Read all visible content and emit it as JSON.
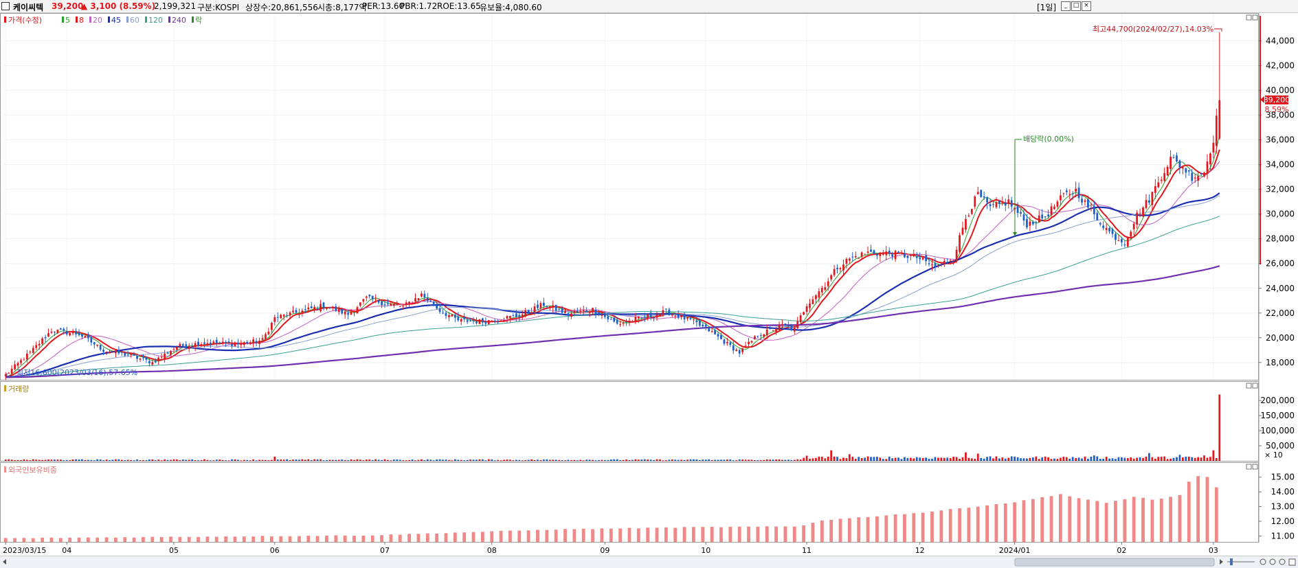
{
  "header": {
    "name": "케이씨텍",
    "price": "39,200",
    "change": "▲ 3,100 (8.59%)",
    "volume": "2,199,321",
    "market": "구분:KOSPI",
    "shares": "상장수:20,861,556",
    "mcap": "시총:8,177억",
    "per": "PER:13.60",
    "pbr": "PBR:1.72",
    "roe": "ROE:13.65",
    "float": "유보율:4,080.60",
    "period_button": "[1일]",
    "colors": {
      "up": "#e0181e",
      "down": "#1c5fc9",
      "name": "#000000"
    }
  },
  "legend": {
    "price_label": "가격(수정)",
    "ma": [
      {
        "label": "5",
        "color": "#2ca02c"
      },
      {
        "label": "8",
        "color": "#e0181e"
      },
      {
        "label": "20",
        "color": "#c060c0"
      },
      {
        "label": "45",
        "color": "#1a2fb0"
      },
      {
        "label": "60",
        "color": "#8aa0d0"
      },
      {
        "label": "120",
        "color": "#3aa090"
      },
      {
        "label": "240",
        "color": "#7030b0"
      },
      {
        "label": "락",
        "color": "#2a8a2a"
      }
    ]
  },
  "annotations": {
    "high": "최고44,700(2024/02/27),14.03%",
    "low": "최저16,600(2023/03/16),57.65%",
    "dividend": "배당락(0.00%)",
    "current_price": "39,200",
    "current_pct": "8.59%"
  },
  "panels": {
    "volume_title": "거래량",
    "foreign_title": "외국인보유비중",
    "volume_unit": "× 10"
  },
  "chart_data": {
    "type": "candlestick",
    "title": "케이씨텍",
    "x_ticks": [
      "2023/03/15",
      "04",
      "05",
      "06",
      "07",
      "08",
      "09",
      "10",
      "11",
      "12",
      "2024/01",
      "02",
      "03"
    ],
    "price_y_ticks": [
      18000,
      20000,
      22000,
      24000,
      26000,
      28000,
      30000,
      32000,
      34000,
      36000,
      38000,
      40000,
      42000,
      44000
    ],
    "price_ylim": [
      16600,
      46200
    ],
    "price_tick_labels": [
      "18,000",
      "20,000",
      "22,000",
      "24,000",
      "26,000",
      "28,000",
      "30,000",
      "32,000",
      "34,000",
      "36,000",
      "38,000",
      "40,000",
      "42,000",
      "44,000"
    ],
    "volume_y_ticks": [
      50000,
      100000,
      150000,
      200000
    ],
    "volume_tick_labels": [
      "50,000",
      "100,000",
      "150,000",
      "200,000"
    ],
    "volume_ylim": [
      0,
      230000
    ],
    "foreign_y_ticks": [
      11,
      12,
      13,
      14,
      15
    ],
    "foreign_tick_labels": [
      "11.00",
      "12.00",
      "13.00",
      "14.00",
      "15.00"
    ],
    "foreign_ylim": [
      10.6,
      15.5
    ],
    "last_close": 39200,
    "high": {
      "value": 44700,
      "date": "2024/02/27"
    },
    "low": {
      "value": 16600,
      "date": "2023/03/16"
    },
    "close_anchors": [
      [
        0,
        17000
      ],
      [
        8,
        18800
      ],
      [
        15,
        20600
      ],
      [
        24,
        20300
      ],
      [
        32,
        19000
      ],
      [
        40,
        18600
      ],
      [
        48,
        18000
      ],
      [
        56,
        19300
      ],
      [
        65,
        19600
      ],
      [
        76,
        19500
      ],
      [
        84,
        19800
      ],
      [
        88,
        21600
      ],
      [
        96,
        22100
      ],
      [
        104,
        22600
      ],
      [
        112,
        21900
      ],
      [
        118,
        23200
      ],
      [
        124,
        22800
      ],
      [
        130,
        22500
      ],
      [
        136,
        23500
      ],
      [
        142,
        22200
      ],
      [
        148,
        21400
      ],
      [
        156,
        21300
      ],
      [
        168,
        21800
      ],
      [
        176,
        22700
      ],
      [
        184,
        21900
      ],
      [
        192,
        22300
      ],
      [
        200,
        21100
      ],
      [
        208,
        21600
      ],
      [
        216,
        22100
      ],
      [
        224,
        21400
      ],
      [
        230,
        20600
      ],
      [
        236,
        19500
      ],
      [
        240,
        18800
      ],
      [
        246,
        20200
      ],
      [
        254,
        21000
      ],
      [
        258,
        20700
      ],
      [
        262,
        22700
      ],
      [
        268,
        24300
      ],
      [
        272,
        25700
      ],
      [
        276,
        26400
      ],
      [
        282,
        26900
      ],
      [
        290,
        26800
      ],
      [
        298,
        26500
      ],
      [
        304,
        25700
      ],
      [
        310,
        26500
      ],
      [
        314,
        29700
      ],
      [
        318,
        31600
      ],
      [
        322,
        30500
      ],
      [
        328,
        31000
      ],
      [
        334,
        29200
      ],
      [
        340,
        29800
      ],
      [
        346,
        31500
      ],
      [
        350,
        31900
      ],
      [
        356,
        29900
      ],
      [
        362,
        28300
      ],
      [
        366,
        27700
      ],
      [
        370,
        29900
      ],
      [
        374,
        31200
      ],
      [
        378,
        33100
      ],
      [
        381,
        34500
      ],
      [
        385,
        33800
      ],
      [
        388,
        33000
      ],
      [
        392,
        33400
      ],
      [
        395,
        36100
      ],
      [
        397,
        39200
      ]
    ],
    "volume_spikes": [
      [
        88,
        14000
      ],
      [
        262,
        17000
      ],
      [
        270,
        35000
      ],
      [
        276,
        22000
      ],
      [
        314,
        28000
      ],
      [
        318,
        24000
      ],
      [
        356,
        18000
      ],
      [
        374,
        26000
      ],
      [
        384,
        20000
      ],
      [
        392,
        18000
      ],
      [
        395,
        35000
      ],
      [
        397,
        219932
      ]
    ],
    "foreign_anchors": [
      [
        0,
        10.85
      ],
      [
        60,
        10.95
      ],
      [
        120,
        11.05
      ],
      [
        180,
        11.45
      ],
      [
        225,
        11.6
      ],
      [
        260,
        11.65
      ],
      [
        266,
        12.05
      ],
      [
        300,
        12.6
      ],
      [
        330,
        13.3
      ],
      [
        345,
        13.85
      ],
      [
        350,
        13.6
      ],
      [
        360,
        13.25
      ],
      [
        370,
        13.7
      ],
      [
        375,
        13.45
      ],
      [
        385,
        13.8
      ],
      [
        388,
        15.1
      ],
      [
        393,
        15.0
      ],
      [
        395,
        14.3
      ],
      [
        397,
        14.3
      ]
    ],
    "n_days": 398
  }
}
